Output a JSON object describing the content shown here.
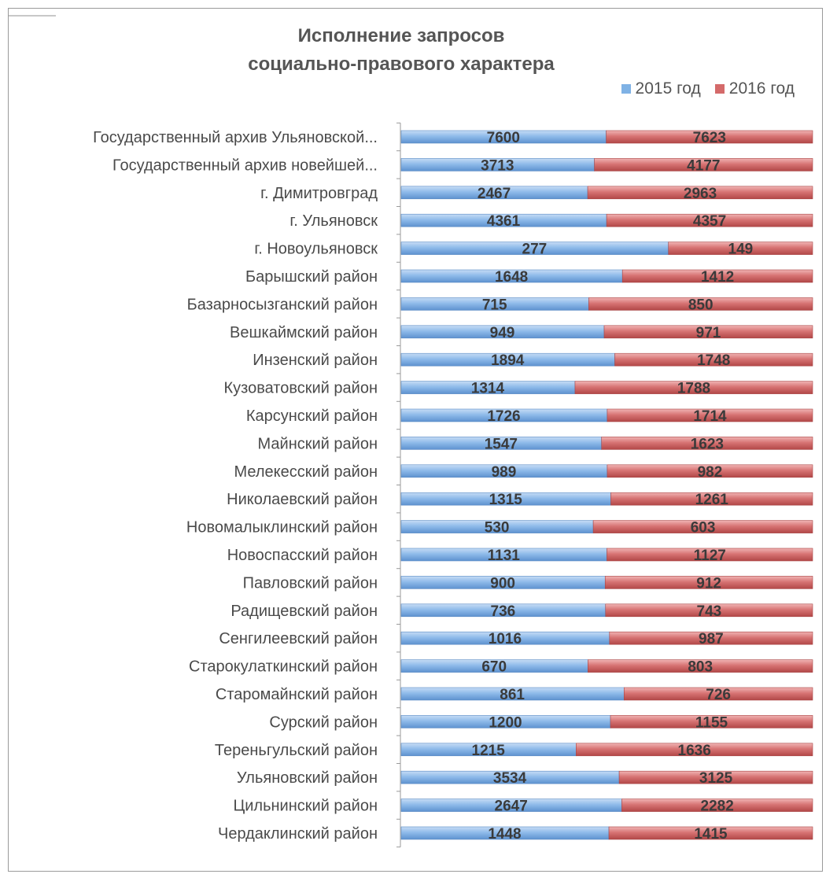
{
  "chart_data": {
    "type": "bar",
    "orientation": "horizontal",
    "stacked": "100%",
    "title_line1": "Исполнение запросов",
    "title_line2": "социально-правового характера",
    "legend_position": "top-right",
    "categories": [
      "Государственный архив Ульяновской...",
      "Государственный архив новейшей...",
      "г. Димитровград",
      "г. Ульяновск",
      "г. Новоульяновск",
      "Барышский район",
      "Базарносызганский район",
      "Вешкаймский район",
      "Инзенский район",
      "Кузоватовский район",
      "Карсунский район",
      "Майнский район",
      "Мелекесский район",
      "Николаевский район",
      "Новомалыклинский район",
      "Новоспасский район",
      "Павловский район",
      "Радищевский район",
      "Сенгилеевский район",
      "Старокулаткинский район",
      "Старомайнский район",
      "Сурский район",
      "Тереньгульский район",
      "Ульяновский район",
      "Цильнинский район",
      "Чердаклинский район"
    ],
    "series": [
      {
        "name": "2015 год",
        "color": "#7fb2e5",
        "values": [
          7600,
          3713,
          2467,
          4361,
          277,
          1648,
          715,
          949,
          1894,
          1314,
          1726,
          1547,
          989,
          1315,
          530,
          1131,
          900,
          736,
          1016,
          670,
          861,
          1200,
          1215,
          3534,
          2647,
          1448
        ]
      },
      {
        "name": "2016 год",
        "color": "#d46a6a",
        "values": [
          7623,
          4177,
          2963,
          4357,
          149,
          1412,
          850,
          971,
          1748,
          1788,
          1714,
          1623,
          982,
          1261,
          603,
          1127,
          912,
          743,
          987,
          803,
          726,
          1155,
          1636,
          3125,
          2282,
          1415
        ]
      }
    ]
  }
}
